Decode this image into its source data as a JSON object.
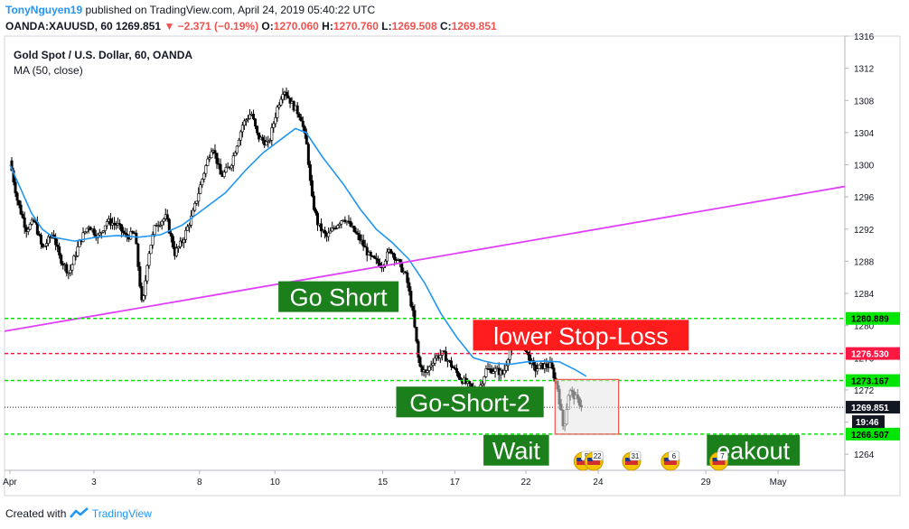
{
  "header": {
    "author": "TonyNguyen19",
    "published": "published on TradingView.com, April 24, 2019 05:40:22 UTC",
    "symbol": "OANDA:XAUUSD, 60",
    "last": "1269.851",
    "change": "−2.371 (−0.19%)",
    "open_label": "O:",
    "open": "1270.060",
    "high_label": "H:",
    "high": "1270.760",
    "low_label": "L:",
    "low": "1269.508",
    "close_label": "C:",
    "close": "1269.851"
  },
  "legend": {
    "title": "Gold Spot / U.S. Dollar, 60, OANDA",
    "indicator": "MA (50, close)"
  },
  "footer": {
    "created_with": "Created with",
    "brand": "TradingView"
  },
  "colors": {
    "bull": "#ffffff",
    "bear": "#000000",
    "ma": "#2196f3",
    "trendline": "#e040fb",
    "green": "#00e600",
    "red": "#ff1744",
    "label_green": "#1b7f1b",
    "label_red": "#ff1c1c",
    "last": "#131722"
  },
  "chart_data": {
    "type": "candlestick",
    "symbol": "OANDA:XAUUSD",
    "timeframe": "60",
    "ylim": [
      1262,
      1316
    ],
    "y_ticks": [
      1264,
      1268,
      1272,
      1276,
      1280,
      1284,
      1288,
      1292,
      1296,
      1300,
      1304,
      1308,
      1312,
      1316
    ],
    "x_ticks": [
      {
        "label": "Apr",
        "x": 0
      },
      {
        "label": "3",
        "x": 7.8
      },
      {
        "label": "8",
        "x": 17.6
      },
      {
        "label": "10",
        "x": 24.6
      },
      {
        "label": "15",
        "x": 34.6
      },
      {
        "label": "17",
        "x": 41.3
      },
      {
        "label": "22",
        "x": 47.9
      },
      {
        "label": "24",
        "x": 54.6
      },
      {
        "label": "29",
        "x": 64.6
      },
      {
        "label": "May",
        "x": 71.3
      }
    ],
    "xlim": [
      -0.5,
      77.5
    ],
    "price_path": [
      {
        "x": 0,
        "p": 1300.5
      },
      {
        "x": 0.7,
        "p": 1295.5
      },
      {
        "x": 1.5,
        "p": 1292.0
      },
      {
        "x": 2.3,
        "p": 1293.0
      },
      {
        "x": 3.0,
        "p": 1289.5
      },
      {
        "x": 4.0,
        "p": 1291.5
      },
      {
        "x": 4.6,
        "p": 1288.5
      },
      {
        "x": 5.5,
        "p": 1286.5
      },
      {
        "x": 6.5,
        "p": 1290.5
      },
      {
        "x": 7.3,
        "p": 1292.5
      },
      {
        "x": 8.2,
        "p": 1291.0
      },
      {
        "x": 9.0,
        "p": 1293.0
      },
      {
        "x": 10.0,
        "p": 1292.5
      },
      {
        "x": 10.8,
        "p": 1291.0
      },
      {
        "x": 11.6,
        "p": 1291.5
      },
      {
        "x": 12.3,
        "p": 1282.0
      },
      {
        "x": 12.8,
        "p": 1288.5
      },
      {
        "x": 13.5,
        "p": 1292.5
      },
      {
        "x": 14.5,
        "p": 1293.5
      },
      {
        "x": 15.3,
        "p": 1289.0
      },
      {
        "x": 16.0,
        "p": 1290.5
      },
      {
        "x": 17.0,
        "p": 1294.0
      },
      {
        "x": 18.0,
        "p": 1299.0
      },
      {
        "x": 18.8,
        "p": 1302.5
      },
      {
        "x": 19.6,
        "p": 1298.5
      },
      {
        "x": 20.5,
        "p": 1300.0
      },
      {
        "x": 21.6,
        "p": 1305.0
      },
      {
        "x": 22.4,
        "p": 1306.5
      },
      {
        "x": 23.0,
        "p": 1303.5
      },
      {
        "x": 24.0,
        "p": 1302.5
      },
      {
        "x": 24.8,
        "p": 1307.0
      },
      {
        "x": 25.4,
        "p": 1309.5
      },
      {
        "x": 26.2,
        "p": 1307.5
      },
      {
        "x": 27.0,
        "p": 1306.0
      },
      {
        "x": 27.6,
        "p": 1302.0
      },
      {
        "x": 28.0,
        "p": 1296.0
      },
      {
        "x": 28.6,
        "p": 1292.5
      },
      {
        "x": 29.4,
        "p": 1291.0
      },
      {
        "x": 30.3,
        "p": 1292.5
      },
      {
        "x": 31.0,
        "p": 1293.5
      },
      {
        "x": 31.8,
        "p": 1292.0
      },
      {
        "x": 32.6,
        "p": 1290.5
      },
      {
        "x": 33.4,
        "p": 1288.5
      },
      {
        "x": 34.5,
        "p": 1287.5
      },
      {
        "x": 35.3,
        "p": 1289.5
      },
      {
        "x": 36.0,
        "p": 1288.0
      },
      {
        "x": 36.8,
        "p": 1286.0
      },
      {
        "x": 37.4,
        "p": 1281.5
      },
      {
        "x": 38.0,
        "p": 1275.0
      },
      {
        "x": 38.6,
        "p": 1274.0
      },
      {
        "x": 39.4,
        "p": 1276.0
      },
      {
        "x": 40.2,
        "p": 1276.5
      },
      {
        "x": 41.0,
        "p": 1275.0
      },
      {
        "x": 41.8,
        "p": 1273.5
      },
      {
        "x": 42.6,
        "p": 1272.5
      },
      {
        "x": 43.4,
        "p": 1271.5
      },
      {
        "x": 44.2,
        "p": 1274.5
      },
      {
        "x": 45.0,
        "p": 1274.5
      },
      {
        "x": 45.8,
        "p": 1274.0
      },
      {
        "x": 46.6,
        "p": 1278.0
      },
      {
        "x": 47.3,
        "p": 1279.0
      },
      {
        "x": 48.0,
        "p": 1276.5
      },
      {
        "x": 48.7,
        "p": 1274.5
      },
      {
        "x": 49.4,
        "p": 1275.0
      },
      {
        "x": 50.2,
        "p": 1275.0
      },
      {
        "x": 50.8,
        "p": 1272.5
      },
      {
        "x": 51.4,
        "p": 1267.0
      },
      {
        "x": 51.9,
        "p": 1272.0
      },
      {
        "x": 52.5,
        "p": 1271.0
      },
      {
        "x": 53.2,
        "p": 1269.851
      }
    ],
    "ma50": [
      {
        "x": 0,
        "p": 1300.0
      },
      {
        "x": 1,
        "p": 1297.0
      },
      {
        "x": 2,
        "p": 1294.0
      },
      {
        "x": 3,
        "p": 1292.0
      },
      {
        "x": 4,
        "p": 1291.0
      },
      {
        "x": 6,
        "p": 1290.5
      },
      {
        "x": 8,
        "p": 1291.0
      },
      {
        "x": 10,
        "p": 1291.2
      },
      {
        "x": 12,
        "p": 1291.0
      },
      {
        "x": 14,
        "p": 1291.3
      },
      {
        "x": 16,
        "p": 1292.5
      },
      {
        "x": 18,
        "p": 1294.5
      },
      {
        "x": 20,
        "p": 1296.5
      },
      {
        "x": 22,
        "p": 1299.5
      },
      {
        "x": 23.5,
        "p": 1301.5
      },
      {
        "x": 25,
        "p": 1303.0
      },
      {
        "x": 26.5,
        "p": 1304.5
      },
      {
        "x": 27.5,
        "p": 1304.0
      },
      {
        "x": 29,
        "p": 1301.0
      },
      {
        "x": 31,
        "p": 1297.5
      },
      {
        "x": 32.5,
        "p": 1294.5
      },
      {
        "x": 34,
        "p": 1292.0
      },
      {
        "x": 35.5,
        "p": 1290.3
      },
      {
        "x": 37,
        "p": 1288.3
      },
      {
        "x": 38.5,
        "p": 1285.3
      },
      {
        "x": 40,
        "p": 1281.5
      },
      {
        "x": 41.5,
        "p": 1278.5
      },
      {
        "x": 43,
        "p": 1276.0
      },
      {
        "x": 44,
        "p": 1275.6
      },
      {
        "x": 45,
        "p": 1275.3
      },
      {
        "x": 46.5,
        "p": 1275.2
      },
      {
        "x": 48,
        "p": 1275.5
      },
      {
        "x": 49.5,
        "p": 1275.6
      },
      {
        "x": 51,
        "p": 1275.5
      },
      {
        "x": 52.5,
        "p": 1274.5
      },
      {
        "x": 53.5,
        "p": 1273.7
      }
    ],
    "trendline": {
      "x1": -0.5,
      "p1": 1279.3,
      "x2": 77.5,
      "p2": 1297.3
    },
    "levels": [
      {
        "price": 1280.889,
        "label": "1280.889",
        "kind": "green"
      },
      {
        "price": 1276.53,
        "label": "1276.530",
        "kind": "red"
      },
      {
        "price": 1273.167,
        "label": "1273.167",
        "kind": "green"
      },
      {
        "price": 1266.507,
        "label": "1266.507",
        "kind": "green"
      }
    ],
    "last_price": {
      "price": 1269.851,
      "label": "1269.851",
      "countdown": "19:46"
    },
    "box": {
      "x1": 50.6,
      "x2": 56.5,
      "p1": 1273.3,
      "p2": 1266.5
    },
    "annotations": [
      {
        "text": "Go Short",
        "x": 30.5,
        "p": 1283.6,
        "kind": "green"
      },
      {
        "text": "lower Stop-Loss",
        "x": 53.0,
        "p": 1278.8,
        "kind": "red"
      },
      {
        "text": "Go-Short-2",
        "x": 42.7,
        "p": 1270.5,
        "kind": "green"
      },
      {
        "text": "Wait",
        "x": 47.0,
        "p": 1264.5,
        "kind": "green"
      },
      {
        "text": "eakout",
        "x": 69.0,
        "p": 1264.5,
        "kind": "green"
      }
    ],
    "events": [
      {
        "count": "5",
        "x": 53.2
      },
      {
        "count": "22",
        "x": 54.2
      },
      {
        "count": "31",
        "x": 57.7
      },
      {
        "count": "6",
        "x": 61.3
      },
      {
        "count": "7",
        "x": 65.8
      }
    ]
  }
}
